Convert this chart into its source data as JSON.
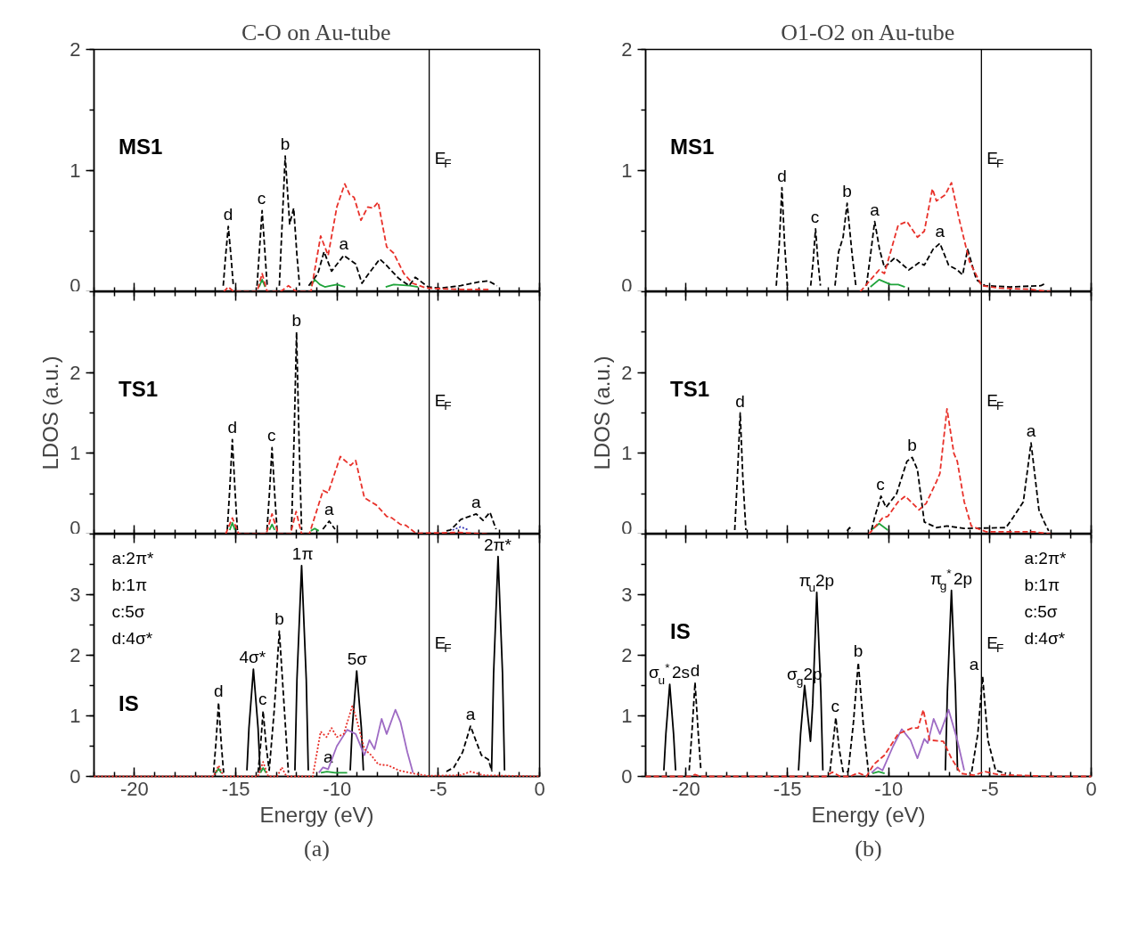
{
  "chart_data": [
    {
      "type": "line",
      "title": "C-O on Au-tube",
      "subtitle": "MS1",
      "xlim": [
        -22,
        0
      ],
      "ylim": [
        0,
        2
      ],
      "xticks": [
        -20,
        -15,
        -10,
        -5,
        0
      ],
      "yticks": [
        0,
        1,
        2
      ],
      "tick_labels": "y",
      "series": [
        {
          "color": "#1fa33a",
          "line_style": "solid",
          "x": [
            -13.85,
            -13.7,
            -13.55,
            -12.5,
            -11.3,
            -11.1,
            -10.85,
            -10.6,
            -10.3,
            -10.0,
            -9.6,
            -8.5,
            -7.6,
            -7.2,
            -6.4,
            -6.0
          ],
          "values": [
            0.04,
            0.1,
            0.04,
            null,
            0.05,
            0.1,
            0.06,
            0.04,
            0.05,
            0.06,
            0.04,
            null,
            0.04,
            0.06,
            0.05,
            0.04
          ]
        },
        {
          "color": "#000000",
          "line_style": "dashed",
          "x": [
            -15.62,
            -15.5,
            -15.37,
            -15.24,
            -15.12,
            -14.5,
            -13.95,
            -13.83,
            -13.7,
            -13.57,
            -13.45,
            -13.2,
            -12.85,
            -12.7,
            -12.56,
            -12.34,
            -12.14,
            -11.98,
            -11.85,
            -11.6,
            -11.4,
            -10.95,
            -10.64,
            -10.27,
            -9.67,
            -9.08,
            -8.77,
            -8.48,
            -7.89,
            -7.63,
            -6.95,
            -6.44,
            -6.14,
            -5.51,
            -4.91,
            -3.9,
            -3.04,
            -2.53,
            -2.1
          ],
          "values": [
            0.05,
            0.3,
            0.54,
            0.3,
            0.05,
            null,
            0.05,
            0.35,
            0.67,
            0.35,
            0.05,
            null,
            0.05,
            0.6,
            1.12,
            0.56,
            0.69,
            0.3,
            0.05,
            null,
            0.05,
            0.15,
            0.33,
            0.17,
            0.3,
            0.23,
            0.07,
            0.14,
            0.27,
            0.23,
            0.11,
            0.05,
            0.12,
            0.04,
            0.03,
            0.05,
            0.08,
            0.09,
            0.05
          ]
        },
        {
          "color": "#e8312a",
          "line_style": "dashed",
          "x": [
            -15.6,
            -15.37,
            -15.1,
            -13.95,
            -13.7,
            -13.45,
            -12.8,
            -12.4,
            -12.0,
            -11.29,
            -10.81,
            -10.44,
            -10.01,
            -9.62,
            -9.37,
            -9.16,
            -8.82,
            -8.48,
            -8.23,
            -7.97,
            -7.55,
            -7.21,
            -6.7,
            -6.27,
            -5.59,
            -4,
            -2.5
          ],
          "values": [
            0,
            0.04,
            0,
            0,
            0.15,
            0,
            0,
            0.05,
            0,
            0,
            0.46,
            0.3,
            0.7,
            0.89,
            0.8,
            0.78,
            0.59,
            0.7,
            0.69,
            0.74,
            0.37,
            0.32,
            0.15,
            0.07,
            0.03,
            0.02,
            0.02
          ]
        }
      ],
      "ref_lines": [
        {
          "axis": "x",
          "value": -5.45,
          "label": "E$_{F}$"
        }
      ],
      "annotations": [
        {
          "text": "d",
          "x": -15.37,
          "y": 0.54
        },
        {
          "text": "c",
          "x": -13.7,
          "y": 0.67
        },
        {
          "text": "b",
          "x": -12.56,
          "y": 1.12
        },
        {
          "text": "a",
          "x": -9.67,
          "y": 0.3
        }
      ]
    },
    {
      "type": "line",
      "subtitle": "TS1",
      "ylabel": "LDOS (a.u.)",
      "xlim": [
        -22,
        0
      ],
      "ylim": [
        0,
        3
      ],
      "xticks": [
        -20,
        -15,
        -10,
        -5,
        0
      ],
      "yticks": [
        0,
        1,
        2
      ],
      "tick_labels": "y",
      "series": [
        {
          "color": "#1fa33a",
          "line_style": "solid",
          "x": [
            -15.3,
            -15.17,
            -15.04,
            -14.2,
            -13.34,
            -13.21,
            -13.08,
            -12.2,
            -11.3,
            -11.1,
            -10.9
          ],
          "values": [
            0.05,
            0.14,
            0.05,
            null,
            0.05,
            0.12,
            0.05,
            null,
            0.04,
            0.07,
            0.04
          ]
        },
        {
          "color": "#3a3ab8",
          "line_style": "dotted",
          "x": [
            -4.3,
            -3.9,
            -3.5
          ],
          "values": [
            0.05,
            0.09,
            0.05
          ]
        },
        {
          "color": "#000000",
          "line_style": "dashed",
          "x": [
            -15.42,
            -15.3,
            -15.17,
            -15.04,
            -14.92,
            -14.2,
            -13.46,
            -13.34,
            -13.21,
            -13.08,
            -12.96,
            -12.6,
            -12.25,
            -12.12,
            -12.0,
            -11.88,
            -11.75,
            -11.2,
            -10.7,
            -10.39,
            -10.1,
            -6.5,
            -4.6,
            -4.4,
            -3.89,
            -3.13,
            -2.79,
            -2.45,
            -2.15
          ],
          "values": [
            0.05,
            0.55,
            1.17,
            0.55,
            0.05,
            null,
            0.05,
            0.5,
            1.07,
            0.5,
            0.05,
            null,
            0.05,
            1.2,
            2.5,
            1.2,
            0.05,
            null,
            0.06,
            0.16,
            0.06,
            null,
            0.04,
            0.05,
            0.18,
            0.25,
            0.17,
            0.27,
            0.06
          ]
        },
        {
          "color": "#e8312a",
          "line_style": "dashed",
          "x": [
            -15.5,
            -15.17,
            -14.85,
            -13.5,
            -13.21,
            -12.9,
            -12.3,
            -12.02,
            -11.75,
            -11.37,
            -10.69,
            -10.44,
            -9.84,
            -9.33,
            -9.08,
            -8.65,
            -8.06,
            -7.55,
            -7.29,
            -6.87,
            -6.61,
            -6.1,
            -4,
            -2.5
          ],
          "values": [
            0,
            0.2,
            0,
            0,
            0.25,
            0,
            0,
            0.28,
            0,
            0,
            0.54,
            0.51,
            0.96,
            0.85,
            0.91,
            0.45,
            0.36,
            0.22,
            0.2,
            0.12,
            0.11,
            0.01,
            0.02,
            0
          ]
        }
      ],
      "ref_lines": [
        {
          "axis": "x",
          "value": -5.45,
          "label": "E$_{F}$"
        }
      ],
      "annotations": [
        {
          "text": "d",
          "x": -15.17,
          "y": 1.17
        },
        {
          "text": "c",
          "x": -13.21,
          "y": 1.07
        },
        {
          "text": "b",
          "x": -12.0,
          "y": 2.5
        },
        {
          "text": "a",
          "x": -10.39,
          "y": 0.16
        },
        {
          "text": "a",
          "x": -3.13,
          "y": 0.25
        }
      ]
    },
    {
      "type": "line",
      "title": "(a)",
      "subtitle": "IS",
      "xlabel": "Energy (eV)",
      "xlim": [
        -22,
        0
      ],
      "ylim": [
        0,
        4
      ],
      "xticks": [
        -20,
        -15,
        -10,
        -5,
        0
      ],
      "yticks": [
        0,
        1,
        2,
        3
      ],
      "series": [
        {
          "color": "#1fa33a",
          "line_style": "solid",
          "x": [
            -15.98,
            -15.85,
            -15.72,
            -14.7,
            -13.78,
            -13.65,
            -13.5,
            -12.0,
            -10.8,
            -10.5,
            -10.1,
            -9.5
          ],
          "values": [
            0.06,
            0.13,
            0.06,
            null,
            0.06,
            0.14,
            0.06,
            null,
            0.06,
            0.08,
            0.06,
            0.06
          ]
        },
        {
          "color": "#000000",
          "line_style": "solid",
          "x": [
            -14.45,
            -14.35,
            -14.13,
            -13.9,
            -13.8,
            -13.0,
            -12.08,
            -11.98,
            -11.75,
            -11.52,
            -11.42,
            -10.5,
            -9.35,
            -9.25,
            -9.03,
            -8.8,
            -8.7,
            -5.0,
            -2.37,
            -2.27,
            -2.05,
            -1.83,
            -1.73
          ],
          "values": [
            0.1,
            0.8,
            1.77,
            0.8,
            0.1,
            null,
            0.1,
            1.6,
            3.48,
            1.6,
            0.1,
            null,
            0.1,
            0.8,
            1.74,
            0.8,
            0.1,
            null,
            0.1,
            1.7,
            3.63,
            1.7,
            0.1
          ]
        },
        {
          "color": "#9e6bc4",
          "line_style": "solid",
          "x": [
            -10.9,
            -10.69,
            -10.44,
            -10.01,
            -9.5,
            -9.08,
            -8.65,
            -8.4,
            -8.15,
            -7.8,
            -7.55,
            -7.12,
            -6.87,
            -6.53,
            -6.25
          ],
          "values": [
            0.06,
            0.15,
            0.12,
            0.5,
            0.77,
            0.7,
            0.35,
            0.6,
            0.45,
            0.95,
            0.7,
            1.1,
            0.9,
            0.4,
            0.06
          ]
        },
        {
          "color": "#000000",
          "line_style": "dashed",
          "x": [
            -16.1,
            -15.98,
            -15.85,
            -15.72,
            -15.6,
            -14.8,
            -13.9,
            -13.78,
            -13.65,
            -13.5,
            -13.35,
            -13.1,
            -12.85,
            -12.6,
            -12.4,
            -8.0,
            -4.6,
            -4.23,
            -3.8,
            -3.41,
            -3.1,
            -2.87,
            -2.53,
            -2.35
          ],
          "values": [
            0.06,
            0.55,
            1.22,
            0.55,
            0.06,
            null,
            0.06,
            0.5,
            1.08,
            0.5,
            0.1,
            1.1,
            2.4,
            1.1,
            0.06,
            null,
            0.08,
            0.15,
            0.4,
            0.83,
            0.55,
            0.35,
            0.28,
            0.08
          ]
        },
        {
          "color": "#e8312a",
          "line_style": "dotted",
          "x": [
            -22,
            -16.1,
            -15.85,
            -15.6,
            -13.9,
            -13.65,
            -13.4,
            -12.95,
            -12.73,
            -12.5,
            -11.2,
            -10.81,
            -10.52,
            -10.27,
            -10.01,
            -9.67,
            -9.25,
            -9.08,
            -8.65,
            -8.31,
            -7.97,
            -7.46,
            -6.95,
            -6.27,
            -5.5,
            -3.9,
            -3.4,
            -2.8,
            0
          ],
          "values": [
            0,
            0,
            0.18,
            0,
            0,
            0.24,
            0,
            0,
            0.15,
            0,
            0,
            0.74,
            0.65,
            0.8,
            0.65,
            0.7,
            1.16,
            1.0,
            0.45,
            0.35,
            0.2,
            0.18,
            0.1,
            0.05,
            0.01,
            0.02,
            0.08,
            0.02,
            0
          ]
        }
      ],
      "ref_lines": [
        {
          "axis": "x",
          "value": -5.45,
          "label": "E$_{F}$"
        }
      ],
      "annotations": [
        "a:2π*",
        "b:1π",
        "c:5σ",
        "d:4σ*",
        {
          "text": "d",
          "x": -15.85,
          "y": 1.22
        },
        {
          "text": "4σ*",
          "x": -14.13,
          "y": 1.77
        },
        {
          "text": "c",
          "x": -13.65,
          "y": 1.08
        },
        {
          "text": "b",
          "x": -12.85,
          "y": 2.4
        },
        {
          "text": "1π",
          "x": -11.75,
          "y": 3.48
        },
        {
          "text": "5σ",
          "x": -9.03,
          "y": 1.74
        },
        {
          "text": "a",
          "x": -10.44,
          "y": 0.12
        },
        {
          "text": "a",
          "x": -3.41,
          "y": 0.83
        },
        {
          "text": "2π*",
          "x": -2.05,
          "y": 3.63
        }
      ]
    },
    {
      "type": "line",
      "title": "O1-O2 on Au-tube",
      "subtitle": "MS1",
      "xlim": [
        -22,
        0
      ],
      "ylim": [
        0,
        2
      ],
      "xticks": [
        -20,
        -15,
        -10,
        -5,
        0
      ],
      "yticks": [
        0,
        1,
        2
      ],
      "tick_labels": "y",
      "series": [
        {
          "color": "#1fa33a",
          "line_style": "solid",
          "x": [
            -10.9,
            -10.47,
            -9.9,
            -9.53,
            -9.2
          ],
          "values": [
            0.04,
            0.1,
            0.06,
            0.06,
            0.04
          ]
        },
        {
          "color": "#000000",
          "line_style": "dashed",
          "x": [
            -15.55,
            -15.4,
            -15.27,
            -15.14,
            -15.0,
            -14.4,
            -13.85,
            -13.73,
            -13.61,
            -13.49,
            -13.37,
            -13.0,
            -12.65,
            -12.47,
            -12.25,
            -12.05,
            -11.8,
            -11.62,
            -11.35,
            -11.1,
            -10.9,
            -10.69,
            -10.45,
            -10.21,
            -9.7,
            -9.01,
            -8.5,
            -8.24,
            -7.81,
            -7.47,
            -7.04,
            -6.61,
            -6.35,
            -6.1,
            -5.67,
            -5.24,
            -4,
            -2.49,
            -2.24
          ],
          "values": [
            0.05,
            0.4,
            0.86,
            0.4,
            0.05,
            null,
            0.05,
            0.25,
            0.52,
            0.25,
            0.05,
            null,
            0.05,
            0.33,
            0.45,
            0.73,
            0.3,
            0.05,
            null,
            0.05,
            0.3,
            0.58,
            0.35,
            0.2,
            0.28,
            0.18,
            0.24,
            0.22,
            0.35,
            0.4,
            0.22,
            0.18,
            0.14,
            0.35,
            0.1,
            0.05,
            0.04,
            0.05,
            0.07
          ]
        },
        {
          "color": "#e8312a",
          "line_style": "dashed",
          "x": [
            -11.41,
            -10.47,
            -10.21,
            -9.53,
            -9.1,
            -8.58,
            -8.24,
            -7.84,
            -7.64,
            -7.21,
            -6.9,
            -6.52,
            -6.01,
            -5.41,
            -4.5,
            -3,
            -2
          ],
          "values": [
            0,
            0.18,
            0.15,
            0.55,
            0.58,
            0.45,
            0.5,
            0.85,
            0.75,
            0.8,
            0.9,
            0.6,
            0.25,
            0.05,
            0.03,
            0.02,
            0
          ]
        }
      ],
      "ref_lines": [
        {
          "axis": "x",
          "value": -5.42,
          "label": "E$_{F}$"
        }
      ],
      "annotations": [
        {
          "text": "d",
          "x": -15.27,
          "y": 0.86
        },
        {
          "text": "c",
          "x": -13.61,
          "y": 0.52
        },
        {
          "text": "b",
          "x": -12.05,
          "y": 0.73
        },
        {
          "text": "a",
          "x": -10.69,
          "y": 0.58
        },
        {
          "text": "a",
          "x": -7.47,
          "y": 0.4
        }
      ]
    },
    {
      "type": "line",
      "subtitle": "TS1",
      "ylabel": "LDOS (a.u.)",
      "xlim": [
        -22,
        0
      ],
      "ylim": [
        0,
        3
      ],
      "xticks": [
        -20,
        -15,
        -10,
        -5,
        0
      ],
      "yticks": [
        0,
        1,
        2
      ],
      "tick_labels": "y",
      "series": [
        {
          "color": "#1fa33a",
          "line_style": "solid",
          "x": [
            -10.8,
            -10.47,
            -10.04
          ],
          "values": [
            0.06,
            0.13,
            0.05
          ]
        },
        {
          "color": "#000000",
          "line_style": "dashed",
          "x": [
            -17.6,
            -17.47,
            -17.33,
            -17.2,
            -17.05,
            -14.5,
            -12.05,
            -11.93,
            -11.8,
            -11.3,
            -10.85,
            -10.7,
            -10.38,
            -10.13,
            -9.61,
            -9.1,
            -8.84,
            -8.58,
            -8.24,
            -7.64,
            -7.12,
            -6.27,
            -4.21,
            -3.87,
            -3.35,
            -2.97,
            -2.58,
            -2.32,
            -2.1
          ],
          "values": [
            0.05,
            0.7,
            1.5,
            0.7,
            0.05,
            null,
            0.04,
            0.08,
            0.04,
            null,
            0.05,
            0.2,
            0.47,
            0.33,
            0.5,
            0.9,
            0.95,
            0.8,
            0.15,
            0.08,
            0.1,
            0.07,
            0.08,
            0.2,
            0.4,
            1.13,
            0.3,
            0.15,
            0.04
          ]
        },
        {
          "color": "#e8312a",
          "line_style": "dashed",
          "x": [
            -10.98,
            -10.3,
            -10.04,
            -9.53,
            -9.18,
            -8.5,
            -8.15,
            -7.64,
            -7.47,
            -7.12,
            -6.78,
            -6.61,
            -6.27,
            -5.92,
            -5.2,
            -2.85,
            -2
          ],
          "values": [
            0,
            0.2,
            0.22,
            0.4,
            0.47,
            0.3,
            0.38,
            0.65,
            0.75,
            1.55,
            1.0,
            0.9,
            0.4,
            0.1,
            0.03,
            0.03,
            0
          ]
        }
      ],
      "ref_lines": [
        {
          "axis": "x",
          "value": -5.42,
          "label": "E$_{F}$"
        }
      ],
      "annotations": [
        {
          "text": "d",
          "x": -17.33,
          "y": 1.5
        },
        {
          "text": "c",
          "x": -10.38,
          "y": 0.47
        },
        {
          "text": "b",
          "x": -8.84,
          "y": 0.95
        },
        {
          "text": "a",
          "x": -2.97,
          "y": 1.13
        }
      ]
    },
    {
      "type": "line",
      "title": "(b)",
      "subtitle": "IS",
      "xlabel": "Energy (eV)",
      "xlim": [
        -22,
        0
      ],
      "ylim": [
        0,
        4
      ],
      "xticks": [
        -20,
        -15,
        -10,
        -5,
        0
      ],
      "yticks": [
        0,
        1,
        2,
        3
      ],
      "series": [
        {
          "color": "#1fa33a",
          "line_style": "solid",
          "x": [
            -10.8,
            -10.5,
            -10.2
          ],
          "values": [
            0.05,
            0.08,
            0.05
          ]
        },
        {
          "color": "#000000",
          "line_style": "solid",
          "x": [
            -21.1,
            -21.0,
            -20.81,
            -20.62,
            -20.52,
            -17.0,
            -14.45,
            -14.35,
            -14.15,
            -13.86,
            -13.75,
            -13.55,
            -13.35,
            -13.25,
            -10.0,
            -7.2,
            -7.1,
            -6.9,
            -6.7,
            -6.6
          ],
          "values": [
            0.1,
            0.7,
            1.52,
            0.7,
            0.1,
            null,
            0.1,
            0.7,
            1.5,
            0.58,
            1.2,
            3.04,
            1.4,
            0.1,
            null,
            0.1,
            1.4,
            3.07,
            1.4,
            0.1
          ]
        },
        {
          "color": "#9e6bc4",
          "line_style": "solid",
          "x": [
            -10.85,
            -10.55,
            -10.3,
            -9.78,
            -9.35,
            -8.92,
            -8.58,
            -8.24,
            -8.07,
            -7.78,
            -7.47,
            -7.04,
            -6.61,
            -6.27
          ],
          "values": [
            0.06,
            0.15,
            0.1,
            0.5,
            0.78,
            0.6,
            0.3,
            0.62,
            0.55,
            0.95,
            0.7,
            1.1,
            0.6,
            0.1
          ]
        },
        {
          "color": "#000000",
          "line_style": "dashed",
          "x": [
            -19.85,
            -19.72,
            -19.56,
            -19.4,
            -19.27,
            -16.0,
            -12.9,
            -12.78,
            -12.61,
            -12.44,
            -12.25,
            -12.0,
            -11.75,
            -11.5,
            -11.25,
            -11.0,
            -8.0,
            -5.9,
            -5.6,
            -5.36,
            -5.1,
            -4.72,
            -4.2
          ],
          "values": [
            0.1,
            0.7,
            1.55,
            0.7,
            0.1,
            null,
            0.08,
            0.45,
            0.97,
            0.45,
            0.08,
            0.08,
            0.85,
            1.88,
            0.85,
            0.08,
            null,
            0.08,
            0.7,
            1.65,
            0.6,
            0.1,
            0.05
          ]
        },
        {
          "color": "#e8312a",
          "line_style": "dashed",
          "x": [
            -22,
            -19.8,
            -19.56,
            -19.3,
            -13.1,
            -12.78,
            -12.4,
            -11.9,
            -11.5,
            -11.1,
            -10.73,
            -10.21,
            -9.53,
            -8.84,
            -8.55,
            -8.29,
            -7.98,
            -7.3,
            -6.9,
            -6.44,
            -5.8,
            -5.24,
            -4.6,
            -2,
            0
          ],
          "values": [
            0,
            0,
            0.03,
            0,
            0,
            0.07,
            0,
            0,
            0.06,
            0,
            0.2,
            0.35,
            0.7,
            0.8,
            0.8,
            1.1,
            0.6,
            0.58,
            0.3,
            0.05,
            0.02,
            0.08,
            0.03,
            0,
            0
          ]
        }
      ],
      "ref_lines": [
        {
          "axis": "x",
          "value": -5.42,
          "label": "E$_{F}$"
        }
      ],
      "annotations": [
        "a:2π*",
        "b:1π",
        "c:5σ",
        "d:4σ*",
        {
          "text": "σ$_{u}$$^{*}$2s",
          "x": -20.81,
          "y": 1.52
        },
        {
          "text": "d",
          "x": -19.56,
          "y": 1.55
        },
        {
          "text": "σ$_{g}$2p",
          "x": -14.15,
          "y": 1.5
        },
        {
          "text": "π$_{u}$2p",
          "x": -13.55,
          "y": 3.04
        },
        {
          "text": "c",
          "x": -12.61,
          "y": 0.97
        },
        {
          "text": "b",
          "x": -11.5,
          "y": 1.88
        },
        {
          "text": "π$_{g}$$^{*}$2p",
          "x": -6.9,
          "y": 3.07
        },
        {
          "text": "a",
          "x": -5.36,
          "y": 1.65
        }
      ]
    }
  ]
}
